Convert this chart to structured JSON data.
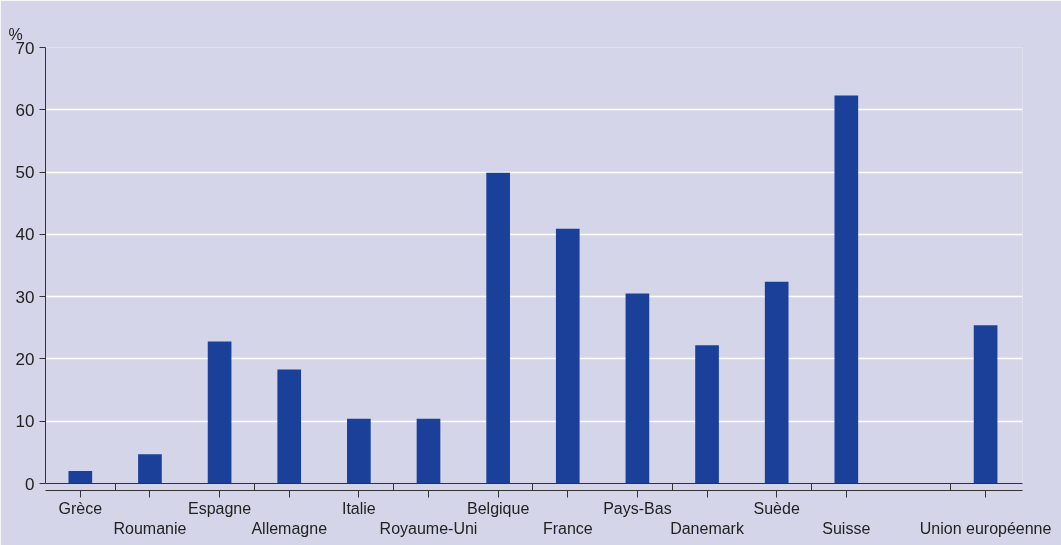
{
  "chart_data": {
    "type": "bar",
    "ylabel": "%",
    "categories": [
      "Grèce",
      "Roumanie",
      "Espagne",
      "Allemagne",
      "Italie",
      "Royaume-Uni",
      "Belgique",
      "France",
      "Pays-Bas",
      "Danemark",
      "Suède",
      "Suisse",
      null,
      "Union européenne"
    ],
    "values": [
      2,
      4.7,
      22.8,
      18.3,
      10.4,
      10.4,
      49.9,
      40.9,
      30.5,
      22.2,
      32.4,
      62.3,
      null,
      25.4
    ],
    "color": "#1a4099",
    "ylim": [
      0,
      70
    ],
    "yticks": [
      0,
      10,
      20,
      30,
      40,
      50,
      60,
      70
    ],
    "grid": "y"
  }
}
